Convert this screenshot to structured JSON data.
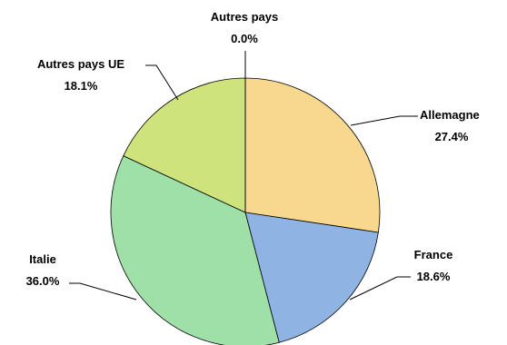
{
  "chart_data": {
    "type": "pie",
    "title": "",
    "slices": [
      {
        "label": "Allemagne",
        "value": 27.4,
        "display": "27.4%",
        "color": "#F8D88F"
      },
      {
        "label": "France",
        "value": 18.6,
        "display": "18.6%",
        "color": "#8FB4E3"
      },
      {
        "label": "Italie",
        "value": 36.0,
        "display": "36.0%",
        "color": "#9FE0A8"
      },
      {
        "label": "Autres pays UE",
        "value": 18.1,
        "display": "18.1%",
        "color": "#CFE37C"
      },
      {
        "label": "Autres pays",
        "value": 0.0,
        "display": "0.0%",
        "color": "#D9D9D9"
      }
    ]
  }
}
